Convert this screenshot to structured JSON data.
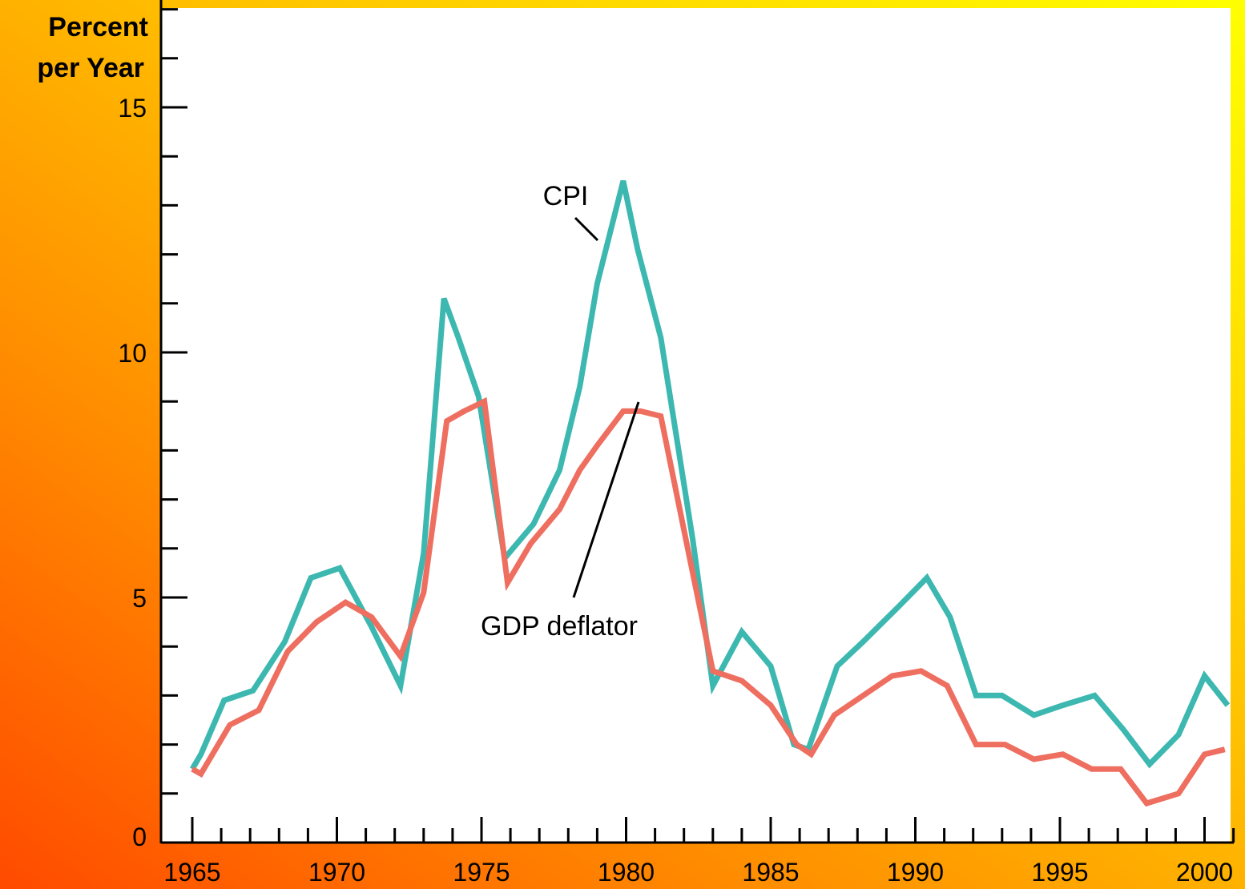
{
  "chart_data": {
    "type": "line",
    "ylabel_line1": "Percent",
    "ylabel_line2": "per Year",
    "xlim": [
      1965,
      2001
    ],
    "ylim": [
      0,
      17
    ],
    "y_major_ticks": [
      0,
      5,
      10,
      15
    ],
    "y_major_labels": [
      "0",
      "5",
      "10",
      "15"
    ],
    "x_major_ticks": [
      1965,
      1970,
      1975,
      1980,
      1985,
      1990,
      1995,
      2000
    ],
    "x_major_labels": [
      "1965",
      "1970",
      "1975",
      "1980",
      "1985",
      "1990",
      "1995",
      "2000"
    ],
    "grid": false,
    "colors": {
      "cpi": "#3cb8b0",
      "gdp_deflator": "#ee6e60",
      "plot_bg": "#ffffff"
    },
    "series": [
      {
        "name": "CPI",
        "x": [
          1965.0,
          1965.3,
          1966.1,
          1967.1,
          1968.2,
          1969.1,
          1970.1,
          1971.2,
          1972.2,
          1973.0,
          1973.7,
          1974.2,
          1974.9,
          1975.8,
          1976.8,
          1977.7,
          1978.4,
          1979.0,
          1979.9,
          1980.4,
          1981.2,
          1982.3,
          1983.0,
          1984.0,
          1985.0,
          1985.8,
          1986.3,
          1987.3,
          1988.2,
          1989.4,
          1990.4,
          1991.2,
          1992.1,
          1993.0,
          1994.1,
          1995.1,
          1996.2,
          1997.2,
          1998.1,
          1999.1,
          2000.0,
          2000.8
        ],
        "y": [
          1.5,
          1.8,
          2.9,
          3.1,
          4.1,
          5.4,
          5.6,
          4.4,
          3.2,
          5.9,
          11.1,
          10.3,
          9.1,
          5.8,
          6.5,
          7.6,
          9.3,
          11.4,
          13.5,
          12.1,
          10.3,
          6.2,
          3.2,
          4.3,
          3.6,
          2.0,
          1.9,
          3.6,
          4.1,
          4.8,
          5.4,
          4.6,
          3.0,
          3.0,
          2.6,
          2.8,
          3.0,
          2.3,
          1.6,
          2.2,
          3.4,
          2.8
        ]
      },
      {
        "name": "GDP deflator",
        "x": [
          1965.0,
          1965.3,
          1966.3,
          1967.3,
          1968.3,
          1969.3,
          1970.3,
          1971.2,
          1972.2,
          1973.0,
          1973.8,
          1974.4,
          1975.1,
          1975.9,
          1976.7,
          1977.7,
          1978.4,
          1979.0,
          1979.9,
          1980.5,
          1981.2,
          1982.2,
          1983.0,
          1984.0,
          1985.0,
          1985.9,
          1986.4,
          1987.2,
          1988.2,
          1989.2,
          1990.2,
          1991.1,
          1992.1,
          1993.1,
          1994.1,
          1995.1,
          1996.1,
          1997.1,
          1998.0,
          1999.1,
          2000.0,
          2000.7
        ],
        "y": [
          1.5,
          1.4,
          2.4,
          2.7,
          3.9,
          4.5,
          4.9,
          4.6,
          3.8,
          5.1,
          8.6,
          8.8,
          9.0,
          5.3,
          6.1,
          6.8,
          7.6,
          8.1,
          8.8,
          8.8,
          8.7,
          5.8,
          3.5,
          3.3,
          2.8,
          2.0,
          1.8,
          2.6,
          3.0,
          3.4,
          3.5,
          3.2,
          2.0,
          2.0,
          1.7,
          1.8,
          1.5,
          1.5,
          0.8,
          1.0,
          1.8,
          1.9
        ]
      }
    ],
    "annotations": [
      {
        "text": "CPI",
        "series": "CPI"
      },
      {
        "text": "GDP deflator",
        "series": "GDP deflator"
      }
    ]
  }
}
